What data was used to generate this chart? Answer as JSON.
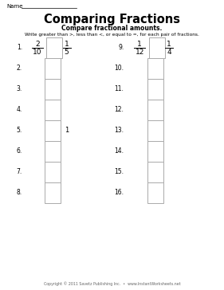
{
  "title": "Comparing Fractions",
  "subtitle": "Compare fractional amounts.",
  "instruction": "Write greater than >, less than <, or equal to =, for each pair of fractions.",
  "name_label": "Name",
  "copyright": "Copyright © 2011 Savetz Publishing Inc.  •  www.InstantWorksheets.net",
  "bg_color": "#ffffff",
  "box_edge_color": "#aaaaaa",
  "problem_1_left_num": "2",
  "problem_1_left_den": "10",
  "problem_1_right_num": "1",
  "problem_1_right_den": "5",
  "problem_9_left_num": "1",
  "problem_9_left_den": "12",
  "problem_9_right_num": "1",
  "problem_9_right_den": "4",
  "problem_5_right": "1"
}
